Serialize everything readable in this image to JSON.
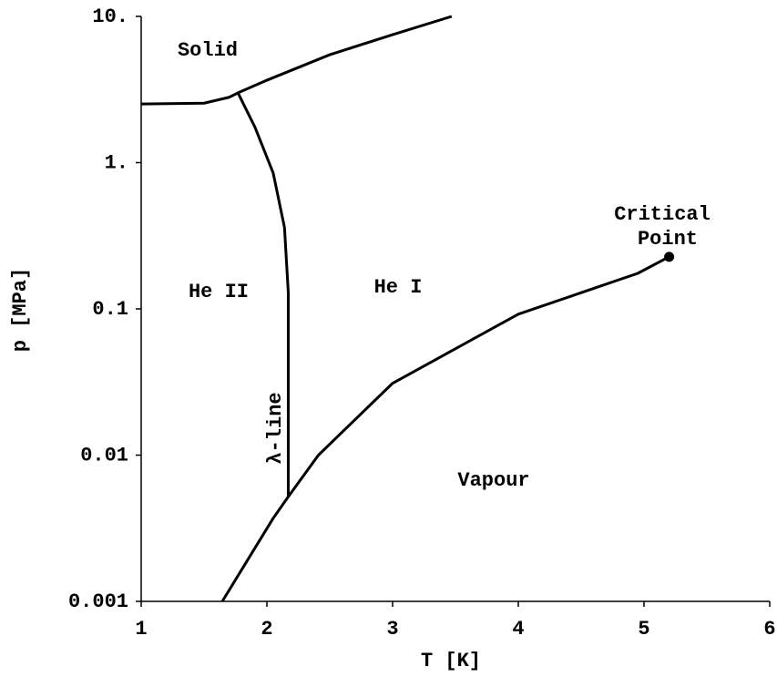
{
  "chart_data": {
    "type": "line",
    "xlabel": "T [K]",
    "ylabel": "p [MPa]",
    "xlim": [
      1,
      6
    ],
    "xticks": [
      1,
      2,
      3,
      4,
      5,
      6
    ],
    "ylim": [
      0.001,
      10
    ],
    "yscale": "log",
    "yticks": [
      {
        "value": 10,
        "label": "10."
      },
      {
        "value": 1,
        "label": "1."
      },
      0.1,
      0.01,
      0.001
    ],
    "series": [
      {
        "color": "#000000",
        "x": [
          1.0,
          1.5,
          1.7,
          1.77,
          2.0,
          2.5,
          3.0,
          3.47
        ],
        "values": [
          2.52,
          2.55,
          2.8,
          3.0,
          3.66,
          5.47,
          7.5,
          10
        ]
      },
      {
        "color": "#000000",
        "x": [
          1.77,
          1.906,
          2.05,
          2.14,
          2.17,
          2.17
        ],
        "values": [
          3.0,
          1.74,
          0.85,
          0.36,
          0.13,
          0.0052
        ]
      },
      {
        "color": "#000000",
        "x": [
          1.645,
          2.05,
          2.17,
          2.41,
          3.0,
          4.0,
          4.95,
          5.2
        ],
        "values": [
          0.001,
          0.0037,
          0.0052,
          0.01,
          0.031,
          0.092,
          0.175,
          0.227
        ]
      }
    ],
    "critical_point": {
      "x": 5.2,
      "value": 0.227,
      "color": "#000000"
    },
    "annotations": [
      {
        "text": "Solid"
      },
      {
        "text": "He II"
      },
      {
        "text": "He I"
      },
      {
        "text": "Vapour"
      },
      {
        "text": "λ-line"
      },
      {
        "text": [
          "Critical",
          "Point"
        ]
      }
    ]
  }
}
